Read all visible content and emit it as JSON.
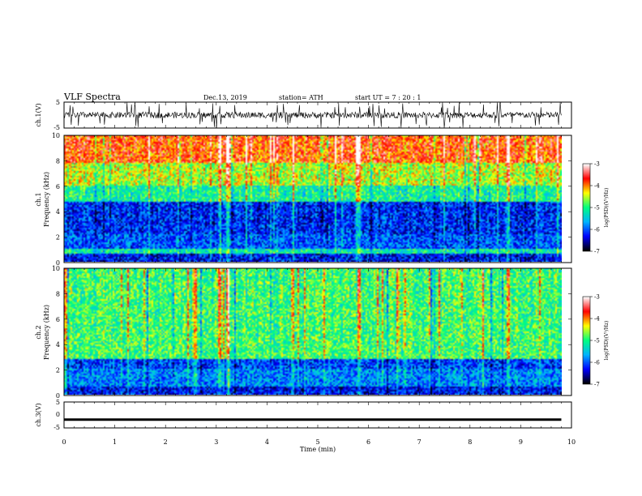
{
  "header": {
    "title": "VLF  Spectra",
    "date": "Dec.13, 2019",
    "station": "station= ATH",
    "start": "start  UT  =    7  : 20 : 1"
  },
  "chart_data": [
    {
      "type": "line",
      "panel": "ch1-waveform",
      "ylabel": "ch.1(V)",
      "xlim": [
        0,
        10
      ],
      "ylim": [
        -5,
        5
      ],
      "yticks": [
        "5",
        "-5"
      ],
      "series": [
        {
          "description_visible": "noisy waveform",
          "baseline": 0,
          "noise_amplitude": 1.2,
          "x_end": 9.8
        }
      ]
    },
    {
      "type": "heatmap",
      "panel": "ch1-spectrogram",
      "ylabel_top": "ch.1",
      "ylabel": "Frequency  (kHz)",
      "xlim": [
        0,
        10
      ],
      "ylim": [
        0,
        10
      ],
      "yticks": [
        "0",
        "2",
        "4",
        "6",
        "8",
        "10"
      ],
      "colorbar": {
        "label": "log(PSD)(V²/Hz)",
        "range": [
          -7,
          -3
        ],
        "ticks": [
          "-3",
          "-4",
          "-5",
          "-6",
          "-7"
        ]
      },
      "band_profile_khz": [
        {
          "from": 0.0,
          "to": 0.6,
          "level": -6.3
        },
        {
          "from": 0.6,
          "to": 1.0,
          "level": -5.2
        },
        {
          "from": 1.0,
          "to": 2.2,
          "level": -6.0
        },
        {
          "from": 2.2,
          "to": 4.8,
          "level": -6.2
        },
        {
          "from": 4.8,
          "to": 6.0,
          "level": -5.1
        },
        {
          "from": 6.0,
          "to": 7.8,
          "level": -4.5
        },
        {
          "from": 7.8,
          "to": 10.0,
          "level": -3.8
        }
      ],
      "spike_times_min": [
        3.05,
        3.2,
        4.5,
        5.8,
        8.72
      ]
    },
    {
      "type": "heatmap",
      "panel": "ch2-spectrogram",
      "ylabel_top": "ch.2",
      "ylabel": "Frequency  (kHz)",
      "xlim": [
        0,
        10
      ],
      "ylim": [
        0,
        10
      ],
      "yticks": [
        "0",
        "2",
        "4",
        "6",
        "8",
        "10"
      ],
      "colorbar": {
        "label": "log(PSD)(V²/Hz)",
        "range": [
          -7,
          -3
        ],
        "ticks": [
          "-3",
          "-4",
          "-5",
          "-6",
          "-7"
        ]
      },
      "band_profile_khz": [
        {
          "from": 0.0,
          "to": 0.6,
          "level": -6.3
        },
        {
          "from": 0.6,
          "to": 2.0,
          "level": -5.8
        },
        {
          "from": 2.0,
          "to": 2.8,
          "level": -6.1
        },
        {
          "from": 2.8,
          "to": 10.0,
          "level": -4.9
        }
      ],
      "spike_times_min": [
        3.05,
        3.2,
        4.5,
        5.8,
        8.72
      ]
    },
    {
      "type": "line",
      "panel": "ch3-waveform",
      "ylabel": "ch.3(V)",
      "xlim": [
        0,
        10
      ],
      "ylim": [
        -5,
        5
      ],
      "yticks": [
        "5",
        "0",
        "-5"
      ],
      "series": [
        {
          "description_visible": "flat line",
          "constant": -1.8,
          "x_end": 9.8
        }
      ]
    }
  ],
  "xaxis": {
    "label": "Time  (min)",
    "ticks": [
      "0",
      "1",
      "2",
      "3",
      "4",
      "5",
      "6",
      "7",
      "8",
      "9",
      "10"
    ]
  },
  "colors": {
    "scale": [
      "#000000",
      "#0000ff",
      "#00b4ff",
      "#00ff80",
      "#ffff00",
      "#ff0000",
      "#ffffff"
    ]
  }
}
